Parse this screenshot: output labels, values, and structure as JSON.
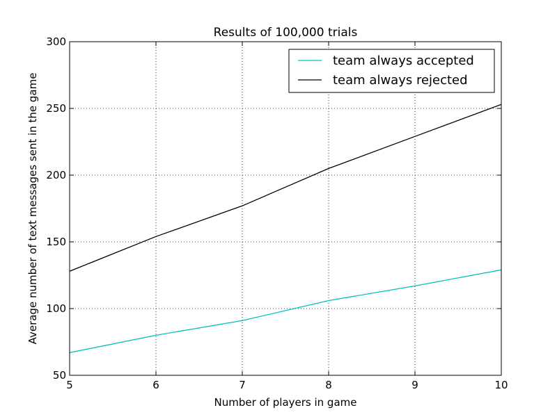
{
  "chart_data": {
    "type": "line",
    "title": "Results of 100,000 trials",
    "xlabel": "Number of players in game",
    "ylabel": "Average number of text messages sent in the game",
    "xlim": [
      5,
      10
    ],
    "ylim": [
      50,
      300
    ],
    "x_ticks": [
      "5",
      "6",
      "7",
      "8",
      "9",
      "10"
    ],
    "y_ticks": [
      "50",
      "100",
      "150",
      "200",
      "250",
      "300"
    ],
    "grid": true,
    "legend_position": "top-right",
    "x": [
      5,
      6,
      7,
      8,
      9,
      10
    ],
    "series": [
      {
        "name": "team always accepted",
        "color": "#00bfbf",
        "values": [
          67,
          80,
          91,
          106,
          117,
          129
        ]
      },
      {
        "name": "team always rejected",
        "color": "#000000",
        "values": [
          128,
          154,
          177,
          205,
          229,
          253
        ]
      }
    ]
  }
}
